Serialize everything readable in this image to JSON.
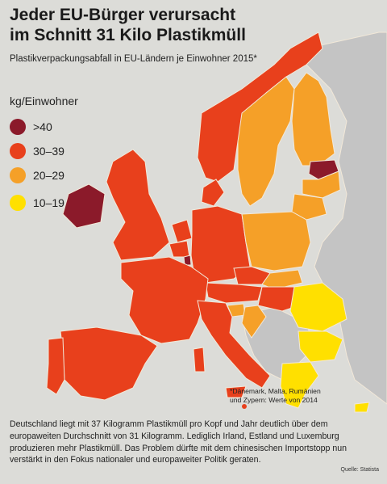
{
  "title_line1": "Jeder EU-Bürger verursacht",
  "title_line2": "im Schnitt 31 Kilo Plastikmüll",
  "subtitle": "Plastikverpackungsabfall in EU-Ländern je Einwohner 2015*",
  "legend": {
    "title": "kg/Einwohner",
    "items": [
      {
        "label": ">40",
        "color": "#8b1a2a"
      },
      {
        "label": "30–39",
        "color": "#e8401c"
      },
      {
        "label": "20–29",
        "color": "#f5a028"
      },
      {
        "label": "10–19",
        "color": "#ffe000"
      }
    ]
  },
  "colors": {
    "background": "#dcdcd8",
    "non_eu": "#c4c4c4",
    "border": "#f2e8d8"
  },
  "footnote_line1": "*Dänemark, Malta, Rumänien",
  "footnote_line2": "und Zypern: Werte von 2014",
  "body_text": "Deutschland liegt mit 37 Kilogramm Plastikmüll pro Kopf und Jahr deutlich über dem europaweiten Durchschnitt von 31 Kilogramm. Lediglich Irland, Estland und Luxemburg produzieren mehr Plastikmüll. Das Problem dürfte mit dem chinesischen Importstopp nun verstärkt in den Fokus nationaler und europaweiter Politik geraten.",
  "source": "Quelle: Statista"
}
